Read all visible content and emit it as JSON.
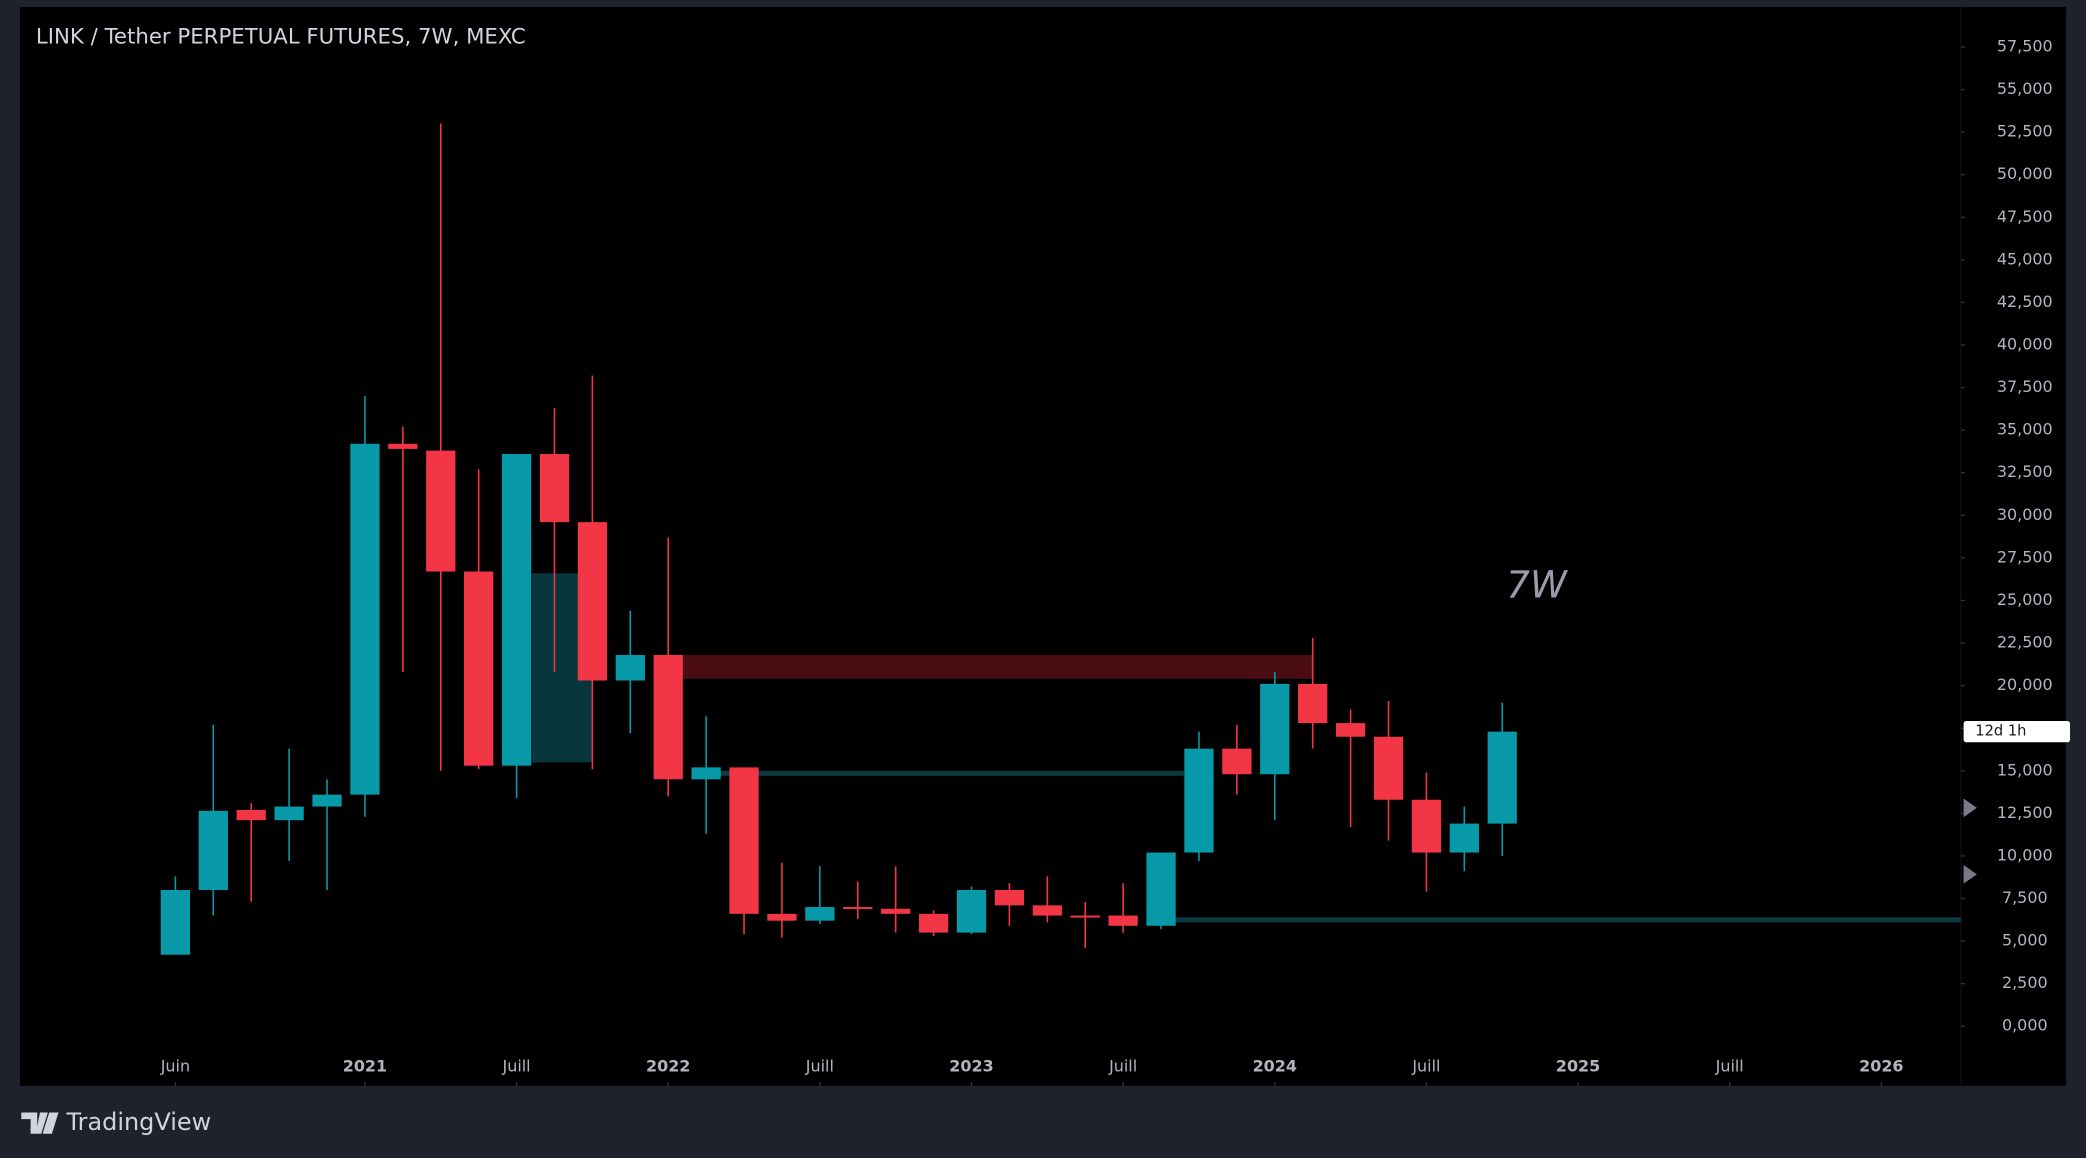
{
  "chart_data": {
    "type": "candlestick",
    "title": "LINK / Tether PERPETUAL FUTURES, 7W, MEXC",
    "annotation": "7W",
    "countdown_label": "12d 1h",
    "brand": "TradingView",
    "up_color": "#089aa8",
    "down_color": "#f23645",
    "x": [
      0,
      1,
      2,
      3,
      4,
      5,
      6,
      7,
      8,
      9,
      10,
      11,
      12,
      13,
      14,
      15,
      16,
      17,
      18,
      19,
      20,
      21,
      22,
      23,
      24,
      25,
      26,
      27,
      28,
      29,
      30,
      31,
      32,
      33,
      34,
      35
    ],
    "open": [
      4200,
      8000,
      12700,
      12100,
      12900,
      13600,
      34200,
      33800,
      26700,
      15300,
      33600,
      29600,
      20300,
      21800,
      14500,
      15200,
      6600,
      6200,
      7000,
      6900,
      6600,
      5500,
      8000,
      7100,
      6500,
      6500,
      5900,
      10200,
      16300,
      14800,
      20100,
      17800,
      17000,
      13300,
      10200,
      11900
    ],
    "high": [
      8800,
      17700,
      13100,
      16300,
      14500,
      37000,
      35200,
      53000,
      32700,
      33600,
      36300,
      38200,
      24400,
      28700,
      18200,
      15200,
      9600,
      9400,
      8500,
      9400,
      6800,
      8200,
      8400,
      8800,
      7300,
      8400,
      10200,
      17300,
      17700,
      20800,
      22800,
      18600,
      19100,
      14900,
      12900,
      19000
    ],
    "low": [
      4200,
      6500,
      7300,
      9700,
      8000,
      12300,
      20800,
      15000,
      15100,
      13400,
      20800,
      15100,
      17200,
      13500,
      11300,
      5400,
      5200,
      6000,
      6300,
      5500,
      5300,
      5400,
      5900,
      6100,
      4600,
      5500,
      5700,
      9700,
      13600,
      12100,
      16300,
      11700,
      10900,
      7900,
      9100,
      10000
    ],
    "close": [
      8000,
      12650,
      12100,
      12900,
      13600,
      34200,
      33900,
      26700,
      15300,
      33600,
      29600,
      20300,
      21800,
      14500,
      15200,
      6600,
      6200,
      7000,
      6900,
      6600,
      5500,
      8000,
      7100,
      6500,
      6400,
      5900,
      10200,
      16300,
      14800,
      20100,
      17800,
      17000,
      13300,
      10200,
      11900,
      17300
    ],
    "zones": [
      {
        "color": "#4a0d12",
        "y": [
          21800,
          20400
        ],
        "x": [
          13,
          30
        ]
      },
      {
        "color": "#0b3a40",
        "y": [
          15000,
          14700
        ],
        "x": [
          14,
          26.6
        ]
      },
      {
        "color": "#0b3a40",
        "y": [
          6400,
          6100
        ],
        "x": [
          26,
          47.1
        ]
      },
      {
        "color": "#07363c",
        "y": [
          26600,
          15500
        ],
        "x": [
          9.4,
          11
        ]
      }
    ],
    "xlim": [
      -4.1,
      47.1
    ],
    "xticks": [
      {
        "value": 0,
        "label": "Juin"
      },
      {
        "value": 5,
        "label": "2021"
      },
      {
        "value": 9,
        "label": "Juill"
      },
      {
        "value": 13,
        "label": "2022"
      },
      {
        "value": 17,
        "label": "Juill"
      },
      {
        "value": 21,
        "label": "2023"
      },
      {
        "value": 25,
        "label": "Juill"
      },
      {
        "value": 29,
        "label": "2024"
      },
      {
        "value": 33,
        "label": "Juill"
      },
      {
        "value": 37,
        "label": "2025"
      },
      {
        "value": 41,
        "label": "Juill"
      },
      {
        "value": 45,
        "label": "2026"
      }
    ],
    "ylim": [
      -3500,
      59850
    ],
    "yticks": [
      {
        "value": 0,
        "label": "0,000"
      },
      {
        "value": 2500,
        "label": "2,500"
      },
      {
        "value": 5000,
        "label": "5,000"
      },
      {
        "value": 7500,
        "label": "7,500"
      },
      {
        "value": 10000,
        "label": "10,000"
      },
      {
        "value": 12500,
        "label": "12,500"
      },
      {
        "value": 15000,
        "label": "15,000"
      },
      {
        "value": 17500,
        "label": "17,500"
      },
      {
        "value": 20000,
        "label": "20,000"
      },
      {
        "value": 22500,
        "label": "22,500"
      },
      {
        "value": 25000,
        "label": "25,000"
      },
      {
        "value": 27500,
        "label": "27,500"
      },
      {
        "value": 30000,
        "label": "30,000"
      },
      {
        "value": 32500,
        "label": "32,500"
      },
      {
        "value": 35000,
        "label": "35,000"
      },
      {
        "value": 37500,
        "label": "37,500"
      },
      {
        "value": 40000,
        "label": "40,000"
      },
      {
        "value": 42500,
        "label": "42,500"
      },
      {
        "value": 45000,
        "label": "45,000"
      },
      {
        "value": 47500,
        "label": "47,500"
      },
      {
        "value": 50000,
        "label": "50,000"
      },
      {
        "value": 52500,
        "label": "52,500"
      },
      {
        "value": 55000,
        "label": "55,000"
      },
      {
        "value": 57500,
        "label": "57,500"
      }
    ]
  }
}
